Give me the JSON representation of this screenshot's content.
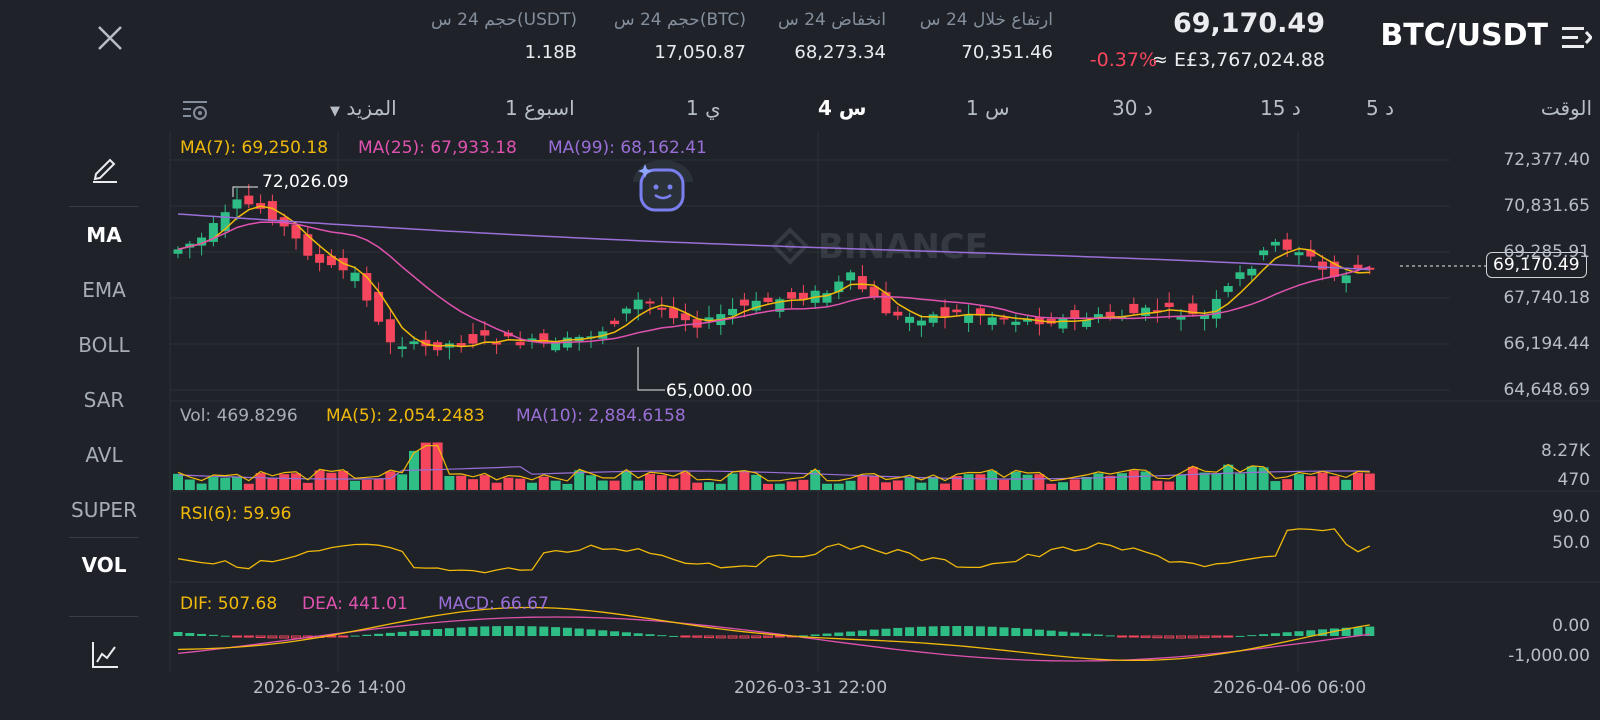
{
  "header": {
    "pair": "BTC/USDT",
    "price": "69,170.49",
    "change_pct": "-0.37%",
    "approx_value": "≈ E£3,767,024.88",
    "stats": [
      {
        "label": "ارتفاع خلال 24 س",
        "value": "70,351.46"
      },
      {
        "label": "انخفاض 24 س",
        "value": "68,273.34"
      },
      {
        "label": "حجم 24 س(BTC)",
        "value": "17,050.87"
      },
      {
        "label": "حجم 24 س(USDT)",
        "value": "1.18B"
      }
    ]
  },
  "timeframes": {
    "time_label": "الوقت",
    "items": [
      "5 د",
      "15 د",
      "30 د",
      "1 س",
      "4 س",
      "1 ي",
      "1 اسبوع",
      "المزيد"
    ],
    "active": "4 س"
  },
  "sidebar": {
    "indicators": [
      "MA",
      "EMA",
      "BOLL",
      "SAR",
      "AVL",
      "SUPER",
      "VOL"
    ],
    "active": [
      "MA",
      "VOL"
    ],
    "icons": [
      "pencil-icon",
      "chart-line-icon",
      "close-icon",
      "menu-icon",
      "settings-icon"
    ]
  },
  "main_legend": {
    "ma7": "MA(7): 69,250.18",
    "ma25": "MA(25): 67,933.18",
    "ma99": "MA(99): 68,162.41"
  },
  "vol_legend": {
    "vol": "Vol: 469.8296",
    "ma5": "MA(5): 2,054.2483",
    "ma10": "MA(10): 2,884.6158"
  },
  "rsi_legend": {
    "rsi": "RSI(6): 59.96"
  },
  "macd_legend": {
    "dif": "DIF: 507.68",
    "dea": "DEA: 441.01",
    "macd": "MACD: 66.67"
  },
  "price_axis": [
    "72,377.40",
    "70,831.65",
    "69,285.91",
    "67,740.18",
    "66,194.44",
    "64,648.69"
  ],
  "vol_axis": [
    "8.27K",
    "470"
  ],
  "rsi_axis": [
    "90.0",
    "50.0"
  ],
  "macd_axis": [
    "0.00",
    "-1,000.00"
  ],
  "time_axis": [
    "2026-03-26 14:00",
    "2026-03-31 22:00",
    "2026-04-06 06:00"
  ],
  "annotations": {
    "high": "72,026.09",
    "low": "65,000.00",
    "current": "69,170.49"
  },
  "watermark": "BINANCE",
  "colors": {
    "up": "#2ebd85",
    "down": "#f6465d",
    "ma7": "#f0b90b",
    "ma25": "#e052b0",
    "ma99": "#9a6fd8",
    "bg": "#1f2329"
  }
}
